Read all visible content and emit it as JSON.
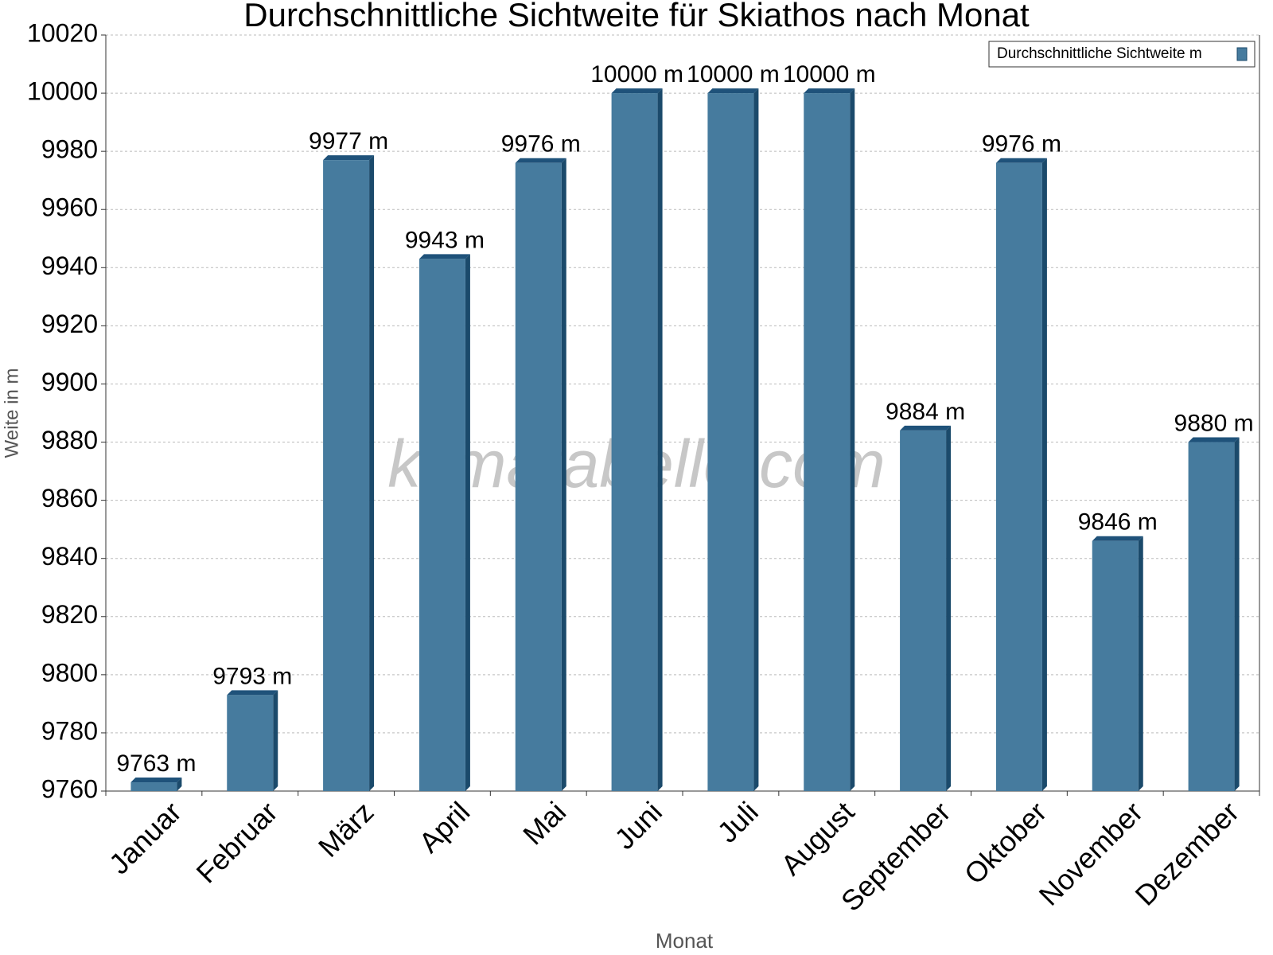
{
  "chart_data": {
    "type": "bar",
    "title": "Durchschnittliche Sichtweite für Skiathos nach Monat",
    "x_label": "Monat",
    "y_label": "Weite in m",
    "watermark": "klimatabelle.com",
    "categories": [
      "Januar",
      "Februar",
      "März",
      "April",
      "Mai",
      "Juni",
      "Juli",
      "August",
      "September",
      "Oktober",
      "November",
      "Dezember"
    ],
    "series": [
      {
        "name": "Durchschnittliche Sichtweite m",
        "color": "#467b9e",
        "values": [
          9763,
          9793,
          9977,
          9943,
          9976,
          10000,
          10000,
          10000,
          9884,
          9976,
          9846,
          9880
        ],
        "value_labels": [
          "9763 m",
          "9793 m",
          "9977 m",
          "9943 m",
          "9976 m",
          "10000 m",
          "10000 m",
          "10000 m",
          "9884 m",
          "9976 m",
          "9846 m",
          "9880 m"
        ]
      }
    ],
    "ylim": [
      9760,
      10020
    ],
    "yticks": [
      9760,
      9780,
      9800,
      9820,
      9840,
      9860,
      9880,
      9900,
      9920,
      9940,
      9960,
      9980,
      10000,
      10020
    ],
    "grid": true,
    "legend": "top-right"
  }
}
